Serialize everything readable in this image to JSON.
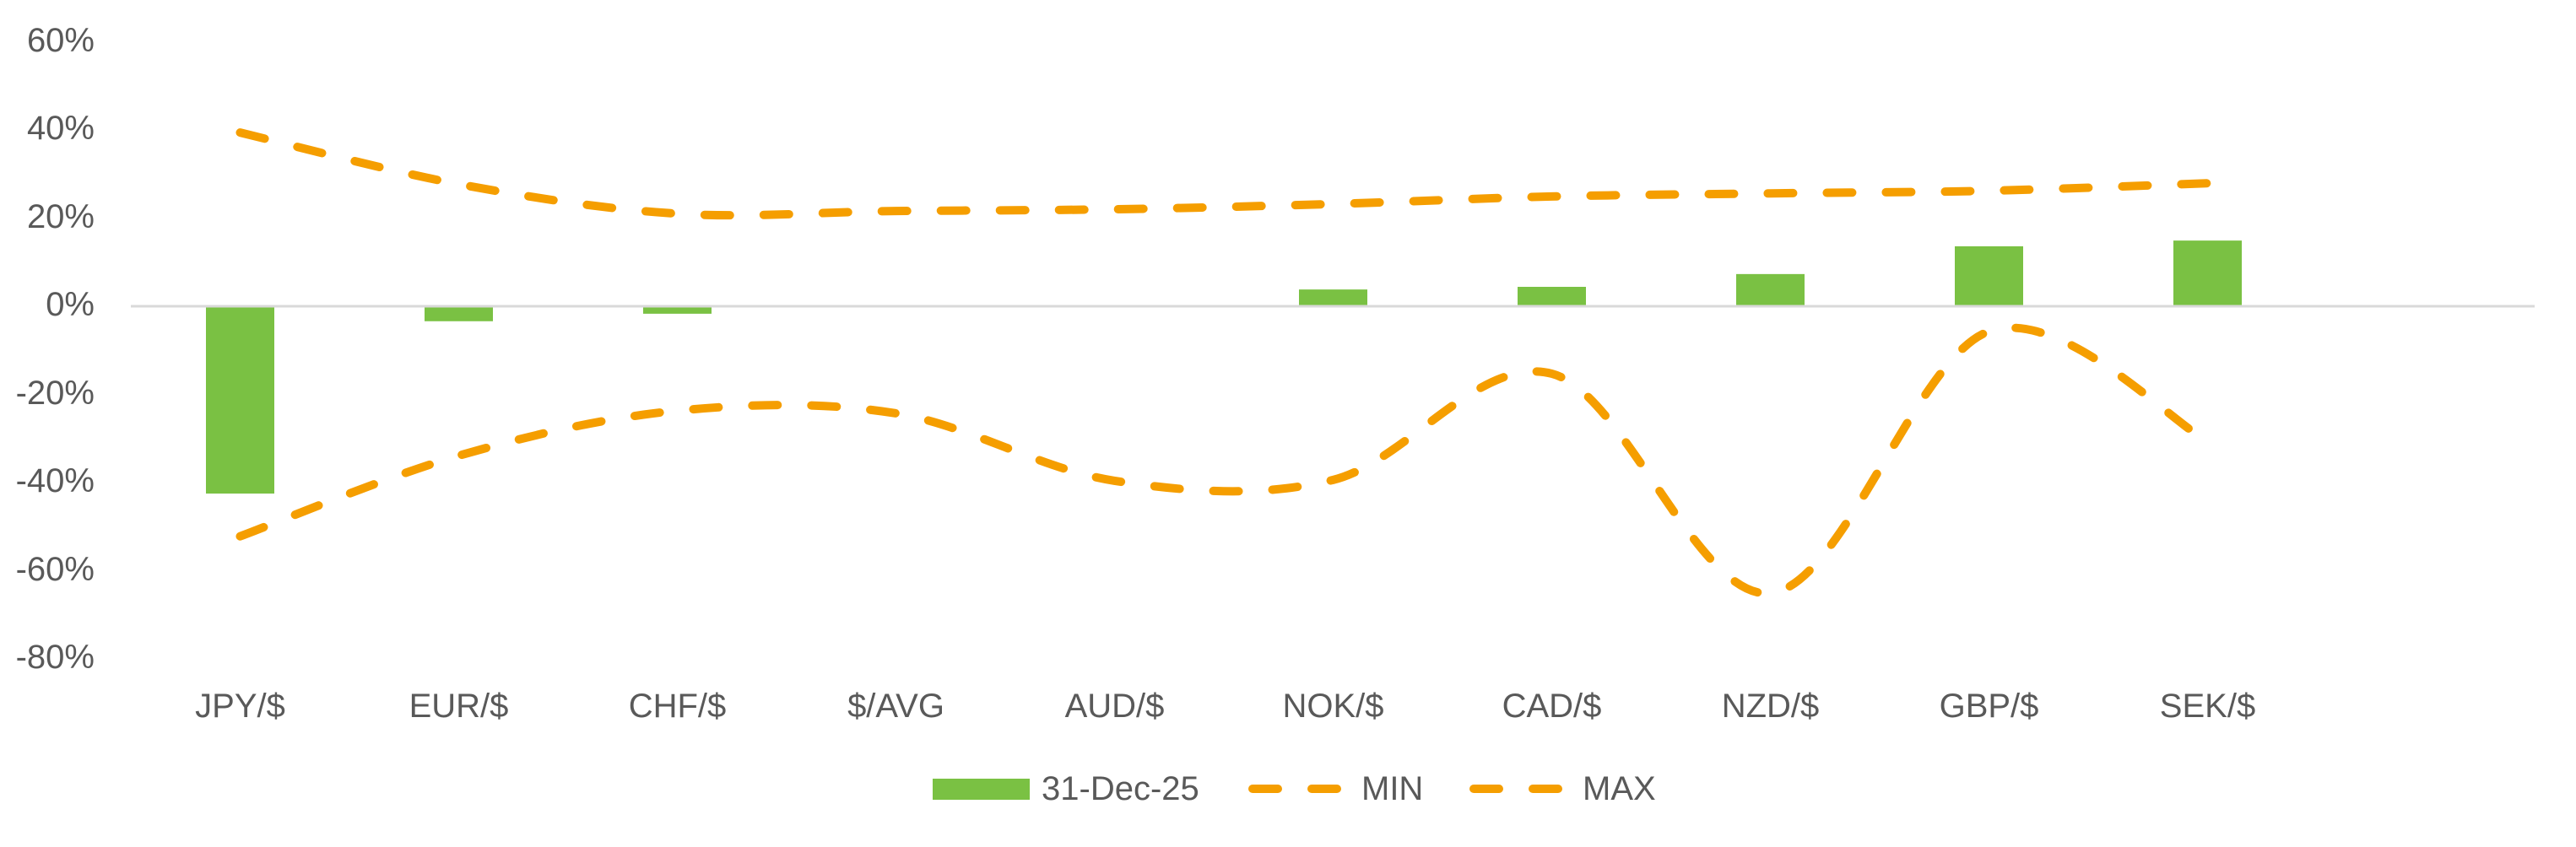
{
  "chart_data": {
    "type": "bar",
    "title": "",
    "xlabel": "",
    "ylabel": "",
    "ylim": [
      -80,
      60
    ],
    "yticks": [
      "60%",
      "40%",
      "20%",
      "0%",
      "-20%",
      "-40%",
      "-60%",
      "-80%"
    ],
    "ytick_values": [
      60,
      40,
      20,
      0,
      -20,
      -40,
      -60,
      -80
    ],
    "grid": false,
    "legend_position": "bottom",
    "categories": [
      "JPY/$",
      "EUR/$",
      "CHF/$",
      "$/AVG",
      "AUD/$",
      "NOK/$",
      "CAD/$",
      "NZD/$",
      "GBP/$",
      "SEK/$"
    ],
    "series": [
      {
        "name": "31-Dec-25",
        "type": "bar",
        "color": "#7AC143",
        "values": [
          -42.5,
          -3.4,
          -1.7,
          0.0,
          0.0,
          3.8,
          4.4,
          7.3,
          13.6,
          14.9
        ]
      },
      {
        "name": "MIN",
        "type": "line",
        "style": "dashed",
        "color": "#F59E00",
        "values": [
          -52.2,
          -33.9,
          -23.7,
          -24.3,
          -39.6,
          -39.4,
          -15.3,
          -65.1,
          -5.7,
          -30.6
        ]
      },
      {
        "name": "MAX",
        "type": "line",
        "style": "dashed",
        "color": "#F59E00",
        "values": [
          39.4,
          27.7,
          21.0,
          21.6,
          22.0,
          23.2,
          24.9,
          25.6,
          26.2,
          27.9
        ]
      }
    ]
  },
  "legend": {
    "items": [
      {
        "label": "31-Dec-25",
        "kind": "bar"
      },
      {
        "label": "MIN",
        "kind": "dash"
      },
      {
        "label": "MAX",
        "kind": "dash"
      }
    ]
  },
  "colors": {
    "bar": "#7AC143",
    "line": "#F59E00",
    "axis": "#D9D9D9",
    "text": "#595959"
  }
}
